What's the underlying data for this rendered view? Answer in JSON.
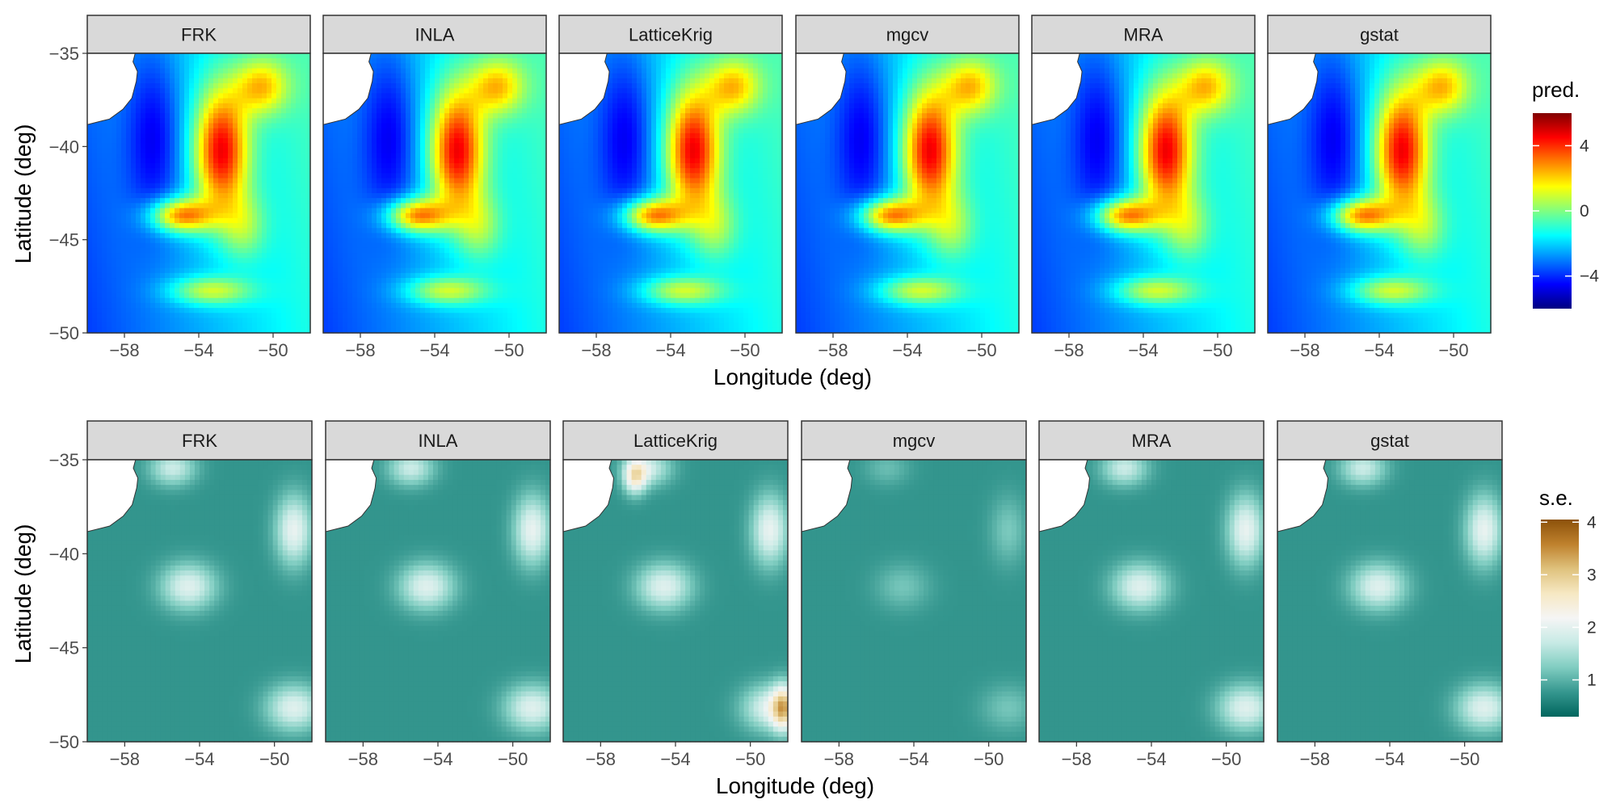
{
  "figure": {
    "x_axis_title": "Longitude (deg)",
    "y_axis_title": "Latitude (deg)",
    "panel_names": [
      "FRK",
      "INLA",
      "LatticeKrig",
      "mgcv",
      "MRA",
      "gstat"
    ]
  },
  "chart_data": [
    {
      "type": "heatmap",
      "facets": [
        "FRK",
        "INLA",
        "LatticeKrig",
        "mgcv",
        "MRA",
        "gstat"
      ],
      "xlabel": "Longitude (deg)",
      "ylabel": "Latitude (deg)",
      "xlim": [
        -60,
        -48
      ],
      "ylim": [
        -50,
        -35
      ],
      "x_ticks": [
        -58,
        -54,
        -50
      ],
      "x_tick_labels": [
        "−58",
        "−54",
        "−50"
      ],
      "y_ticks": [
        -35,
        -40,
        -45,
        -50
      ],
      "y_tick_labels": [
        "−35",
        "−40",
        "−45",
        "−50"
      ],
      "legend": {
        "title": "pred.",
        "position": "right",
        "range": [
          -6,
          6
        ],
        "ticks": [
          4,
          0,
          -4
        ],
        "tick_labels": [
          "4",
          "0",
          "−4"
        ],
        "colors": [
          "#000080",
          "#0000ff",
          "#0080ff",
          "#00ffff",
          "#80ff80",
          "#ffff00",
          "#ff8000",
          "#ff0000",
          "#800000"
        ]
      },
      "colors": {
        "land": "#ffffff",
        "strip": "#d9d9d9"
      },
      "grid": false
    },
    {
      "type": "heatmap",
      "facets": [
        "FRK",
        "INLA",
        "LatticeKrig",
        "mgcv",
        "MRA",
        "gstat"
      ],
      "xlabel": "Longitude (deg)",
      "ylabel": "Latitude (deg)",
      "xlim": [
        -60,
        -48
      ],
      "ylim": [
        -50,
        -35
      ],
      "x_ticks": [
        -58,
        -54,
        -50
      ],
      "x_tick_labels": [
        "−58",
        "−54",
        "−50"
      ],
      "y_ticks": [
        -35,
        -40,
        -45,
        -50
      ],
      "y_tick_labels": [
        "−35",
        "−40",
        "−45",
        "−50"
      ],
      "legend": {
        "title": "s.e.",
        "position": "right",
        "range": [
          0.3,
          4.05
        ],
        "ticks": [
          4,
          3,
          2,
          1
        ],
        "tick_labels": [
          "4",
          "3",
          "2",
          "1"
        ],
        "colors": [
          "#01665e",
          "#35978f",
          "#80cdc1",
          "#c7eae5",
          "#f5f5f5",
          "#f6e8c3",
          "#dfc27d",
          "#bf812d",
          "#8c510a"
        ]
      },
      "colors": {
        "land": "#ffffff",
        "strip": "#d9d9d9"
      },
      "grid": false
    }
  ]
}
